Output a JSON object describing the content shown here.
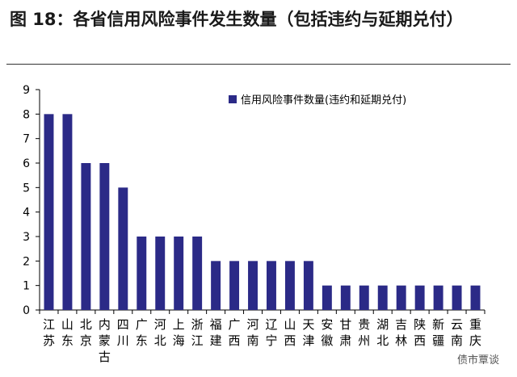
{
  "title": "图 18：各省信用风险事件发生数量（包括违约与延期兑付）",
  "watermark": "债市覃谈",
  "chart_data": {
    "type": "bar",
    "categories": [
      "江苏",
      "山东",
      "北京",
      "内蒙古",
      "四川",
      "广东",
      "河北",
      "上海",
      "浙江",
      "福建",
      "广西",
      "河南",
      "辽宁",
      "山西",
      "天津",
      "安徽",
      "甘肃",
      "贵州",
      "湖北",
      "吉林",
      "陕西",
      "新疆",
      "云南",
      "重庆"
    ],
    "values": [
      8,
      8,
      6,
      6,
      5,
      3,
      3,
      3,
      3,
      2,
      2,
      2,
      2,
      2,
      2,
      1,
      1,
      1,
      1,
      1,
      1,
      1,
      1,
      1
    ],
    "ylim": [
      0,
      9
    ],
    "yticks": [
      0,
      1,
      2,
      3,
      4,
      5,
      6,
      7,
      8,
      9
    ],
    "series": [
      {
        "name": "信用风险事件数量(违约和延期兑付)",
        "color": "#2b2a87"
      }
    ],
    "legend_position": "top-right",
    "grid": false
  }
}
